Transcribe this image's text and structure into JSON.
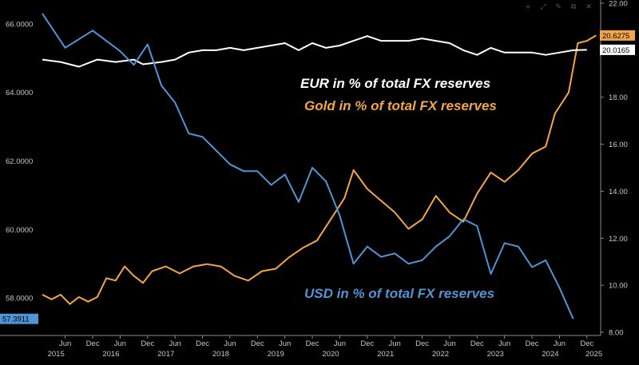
{
  "toolbar": {
    "icons": [
      "crosshair-icon",
      "zoom-icon",
      "edit-icon",
      "clone-icon",
      "close-icon"
    ]
  },
  "chart_data": {
    "type": "line",
    "title": "",
    "left_axis": {
      "ticks": [
        "66.0000",
        "64.0000",
        "62.0000",
        "60.0000",
        "58.0000"
      ],
      "range": [
        57.0,
        66.6
      ]
    },
    "right_axis": {
      "ticks": [
        "22.00",
        "20.00",
        "18.00",
        "16.00",
        "14.00",
        "12.00",
        "10.00",
        "8.00"
      ],
      "range": [
        8.0,
        22.0
      ]
    },
    "x_axis": {
      "months": [
        "Jun",
        "Dec",
        "Jun",
        "Dec",
        "Jun",
        "Dec",
        "Jun",
        "Dec",
        "Jun",
        "Dec",
        "Jun",
        "Dec",
        "Jun",
        "Dec",
        "Jun",
        "Dec",
        "Jun",
        "Dec",
        "Jun",
        "Dec"
      ],
      "years": [
        "2015",
        "2016",
        "2017",
        "2018",
        "2019",
        "2020",
        "2021",
        "2022",
        "2023",
        "2024",
        "2025"
      ],
      "range": [
        "2015-01",
        "2025-03"
      ]
    },
    "series": [
      {
        "name": "EUR in % of total FX reserves",
        "axis": "right",
        "color": "#ffffff",
        "points": [
          [
            "2015-01",
            19.6
          ],
          [
            "2015-05",
            19.5
          ],
          [
            "2015-09",
            19.3
          ],
          [
            "2016-01",
            19.6
          ],
          [
            "2016-05",
            19.5
          ],
          [
            "2016-09",
            19.6
          ],
          [
            "2016-11",
            19.4
          ],
          [
            "2017-03",
            19.5
          ],
          [
            "2017-06",
            19.6
          ],
          [
            "2017-09",
            19.9
          ],
          [
            "2017-12",
            20.0
          ],
          [
            "2018-03",
            20.0
          ],
          [
            "2018-06",
            20.1
          ],
          [
            "2018-09",
            20.0
          ],
          [
            "2018-12",
            20.1
          ],
          [
            "2019-03",
            20.2
          ],
          [
            "2019-06",
            20.3
          ],
          [
            "2019-09",
            20.0
          ],
          [
            "2019-12",
            20.3
          ],
          [
            "2020-03",
            20.1
          ],
          [
            "2020-06",
            20.2
          ],
          [
            "2020-09",
            20.4
          ],
          [
            "2020-12",
            20.6
          ],
          [
            "2021-03",
            20.4
          ],
          [
            "2021-06",
            20.4
          ],
          [
            "2021-09",
            20.4
          ],
          [
            "2021-12",
            20.5
          ],
          [
            "2022-03",
            20.4
          ],
          [
            "2022-06",
            20.3
          ],
          [
            "2022-09",
            20.0
          ],
          [
            "2022-12",
            19.8
          ],
          [
            "2023-03",
            20.1
          ],
          [
            "2023-06",
            19.9
          ],
          [
            "2023-09",
            19.9
          ],
          [
            "2023-12",
            19.9
          ],
          [
            "2024-03",
            19.8
          ],
          [
            "2024-06",
            19.9
          ],
          [
            "2024-09",
            20.0
          ],
          [
            "2024-12",
            20.0165
          ]
        ]
      },
      {
        "name": "Gold in % of total FX reserves",
        "axis": "right",
        "color": "#f2a54a",
        "points": [
          [
            "2015-01",
            9.6
          ],
          [
            "2015-03",
            9.4
          ],
          [
            "2015-05",
            9.6
          ],
          [
            "2015-07",
            9.2
          ],
          [
            "2015-09",
            9.5
          ],
          [
            "2015-11",
            9.3
          ],
          [
            "2016-01",
            9.5
          ],
          [
            "2016-03",
            10.3
          ],
          [
            "2016-05",
            10.2
          ],
          [
            "2016-07",
            10.8
          ],
          [
            "2016-09",
            10.4
          ],
          [
            "2016-11",
            10.1
          ],
          [
            "2017-01",
            10.6
          ],
          [
            "2017-04",
            10.8
          ],
          [
            "2017-07",
            10.5
          ],
          [
            "2017-10",
            10.8
          ],
          [
            "2018-01",
            10.9
          ],
          [
            "2018-04",
            10.8
          ],
          [
            "2018-07",
            10.4
          ],
          [
            "2018-10",
            10.2
          ],
          [
            "2019-01",
            10.6
          ],
          [
            "2019-04",
            10.7
          ],
          [
            "2019-07",
            11.2
          ],
          [
            "2019-10",
            11.6
          ],
          [
            "2020-01",
            11.9
          ],
          [
            "2020-04",
            12.8
          ],
          [
            "2020-07",
            13.7
          ],
          [
            "2020-09",
            14.9
          ],
          [
            "2020-12",
            14.1
          ],
          [
            "2021-03",
            13.6
          ],
          [
            "2021-06",
            13.1
          ],
          [
            "2021-09",
            12.4
          ],
          [
            "2021-12",
            12.8
          ],
          [
            "2022-03",
            13.8
          ],
          [
            "2022-06",
            13.1
          ],
          [
            "2022-09",
            12.7
          ],
          [
            "2022-12",
            13.9
          ],
          [
            "2023-03",
            14.8
          ],
          [
            "2023-06",
            14.4
          ],
          [
            "2023-09",
            14.9
          ],
          [
            "2023-12",
            15.6
          ],
          [
            "2024-03",
            15.9
          ],
          [
            "2024-05",
            17.3
          ],
          [
            "2024-08",
            18.2
          ],
          [
            "2024-10",
            20.3
          ],
          [
            "2024-12",
            20.4
          ],
          [
            "2025-02",
            20.6275
          ]
        ]
      },
      {
        "name": "USD in % of total FX reserves",
        "axis": "left",
        "color": "#4f95d6",
        "points": [
          [
            "2015-01",
            66.3
          ],
          [
            "2015-06",
            65.3
          ],
          [
            "2015-12",
            65.8
          ],
          [
            "2016-06",
            65.2
          ],
          [
            "2016-09",
            64.8
          ],
          [
            "2016-12",
            65.4
          ],
          [
            "2017-03",
            64.2
          ],
          [
            "2017-06",
            63.7
          ],
          [
            "2017-09",
            62.8
          ],
          [
            "2017-12",
            62.7
          ],
          [
            "2018-03",
            62.3
          ],
          [
            "2018-06",
            61.9
          ],
          [
            "2018-09",
            61.7
          ],
          [
            "2018-12",
            61.7
          ],
          [
            "2019-03",
            61.3
          ],
          [
            "2019-06",
            61.6
          ],
          [
            "2019-09",
            60.8
          ],
          [
            "2019-12",
            61.8
          ],
          [
            "2020-03",
            61.4
          ],
          [
            "2020-06",
            60.4
          ],
          [
            "2020-09",
            59.0
          ],
          [
            "2020-12",
            59.5
          ],
          [
            "2021-03",
            59.2
          ],
          [
            "2021-06",
            59.3
          ],
          [
            "2021-09",
            59.0
          ],
          [
            "2021-12",
            59.1
          ],
          [
            "2022-03",
            59.5
          ],
          [
            "2022-06",
            59.8
          ],
          [
            "2022-09",
            60.3
          ],
          [
            "2022-12",
            60.1
          ],
          [
            "2023-03",
            58.7
          ],
          [
            "2023-06",
            59.6
          ],
          [
            "2023-09",
            59.5
          ],
          [
            "2023-12",
            58.9
          ],
          [
            "2024-03",
            59.1
          ],
          [
            "2024-06",
            58.3
          ],
          [
            "2024-09",
            57.3911
          ]
        ]
      }
    ],
    "last_values": [
      {
        "series": "Gold in % of total FX reserves",
        "value": "20.6275",
        "axis": "right",
        "color": "#f2a54a",
        "text_color": "#000000"
      },
      {
        "series": "EUR in % of total FX reserves",
        "value": "20.0165",
        "axis": "right",
        "color": "#ffffff",
        "text_color": "#000000"
      },
      {
        "series": "USD in % of total FX reserves",
        "value": "57.3911",
        "axis": "left",
        "color": "#4f95d6",
        "text_color": "#000000"
      }
    ],
    "labels": [
      {
        "text": "EUR in % of total FX reserves",
        "color": "#ffffff"
      },
      {
        "text": "Gold in % of total FX reserves",
        "color": "#f2a54a"
      },
      {
        "text": "USD in % of total FX reserves",
        "color": "#4f95d6"
      }
    ],
    "grid": false
  }
}
